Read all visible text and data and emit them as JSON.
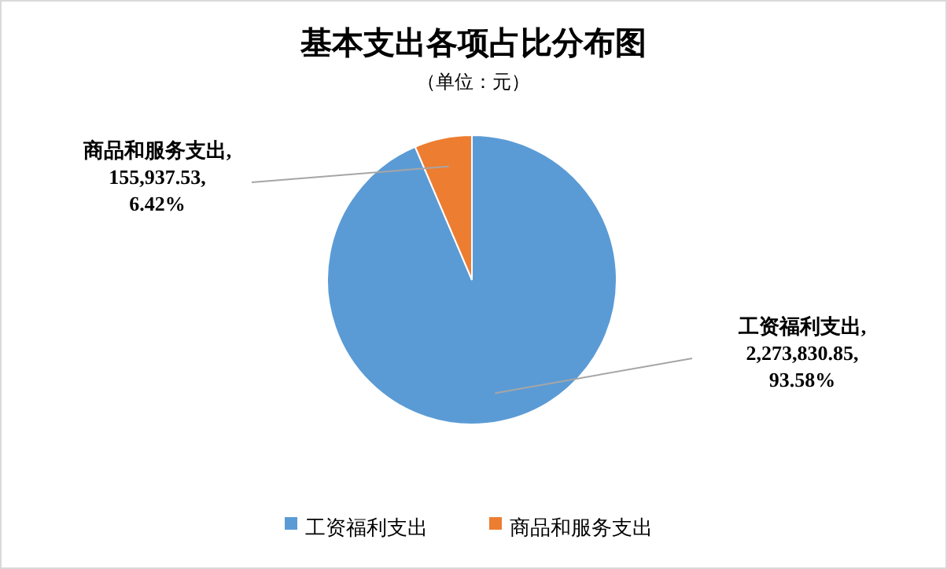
{
  "chart_data": {
    "type": "pie",
    "title": "基本支出各项占比分布图",
    "subtitle": "（单位：元）",
    "categories": [
      "工资福利支出",
      "商品和服务支出"
    ],
    "values": [
      2273830.85,
      155937.53
    ],
    "colors": [
      "#5b9bd5",
      "#ed7d31"
    ],
    "value_labels": [
      "工资福利支出,\n2,273,830.85,\n93.58%",
      "商品和服务支出,\n155,937.53,\n6.42%"
    ],
    "legend": "bottom"
  }
}
